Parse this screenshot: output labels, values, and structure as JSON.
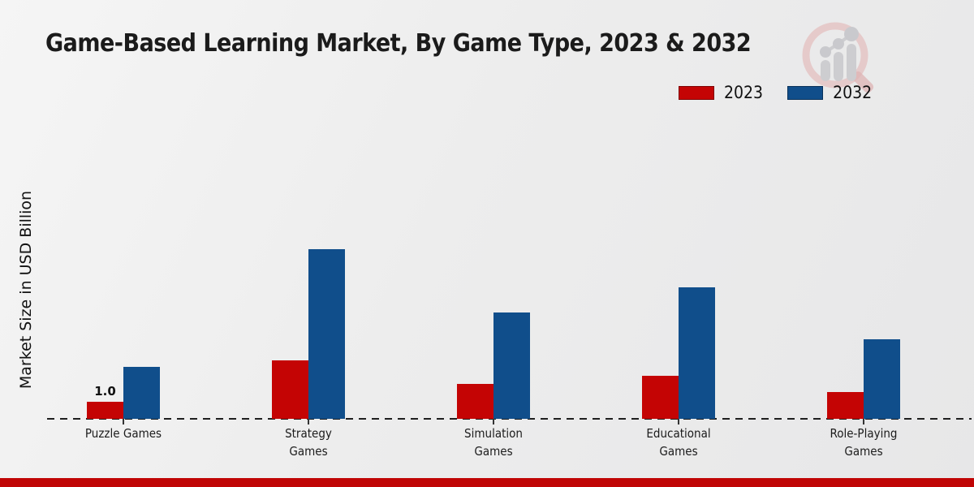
{
  "chart_data": {
    "type": "bar",
    "title": "Game-Based Learning Market, By Game Type, 2023 & 2032",
    "ylabel": "Market Size in USD Billion",
    "xlabel": "",
    "categories": [
      "Puzzle Games",
      "Strategy Games",
      "Simulation Games",
      "Educational Games",
      "Role-Playing Games"
    ],
    "series": [
      {
        "name": "2023",
        "color": "#c40404",
        "values": [
          1.0,
          3.5,
          2.1,
          2.6,
          1.6
        ]
      },
      {
        "name": "2032",
        "color": "#104e8b",
        "values": [
          3.1,
          10.2,
          6.4,
          7.9,
          4.8
        ]
      }
    ],
    "annotation": {
      "text": "1.0",
      "category_index": 0,
      "series_index": 0
    },
    "ylim": [
      0,
      12
    ],
    "grid": false,
    "baseline_style": "dashed",
    "legend_position": "top-right"
  },
  "branding": {
    "footer_stripe_color": "#c00505",
    "logo_icon": "magnifier-bar-chart-watermark"
  }
}
